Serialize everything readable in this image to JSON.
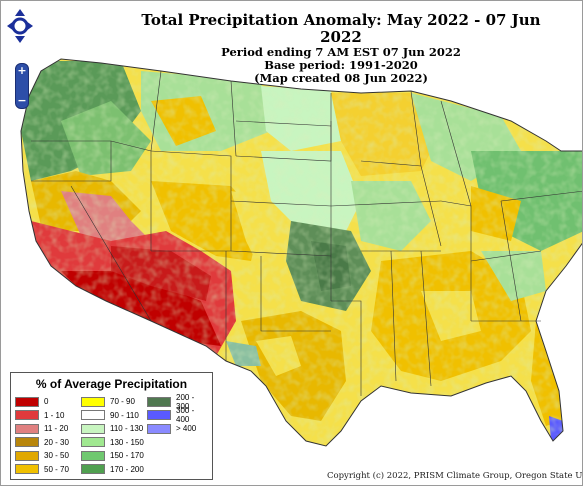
{
  "title": {
    "line1": "Total Precipitation Anomaly: May 2022 - 07 Jun 2022",
    "line2": "Period ending 7 AM EST 07 Jun 2022",
    "line3": "Base period: 1991-2020",
    "line4": "(Map created 08 Jun 2022)"
  },
  "navigation": {
    "pan_icon": "pan-arrows-icon",
    "zoom_in_label": "+",
    "zoom_out_label": "−"
  },
  "legend": {
    "title": "% of Average Precipitation",
    "items": [
      {
        "label": "0",
        "color": "#c00000"
      },
      {
        "label": "1 - 10",
        "color": "#e03a3c"
      },
      {
        "label": "11 - 20",
        "color": "#e08080"
      },
      {
        "label": "20 - 30",
        "color": "#b8860b"
      },
      {
        "label": "30 - 50",
        "color": "#e0a800"
      },
      {
        "label": "50 - 70",
        "color": "#f0c000"
      },
      {
        "label": "70 - 90",
        "color": "#ffff00"
      },
      {
        "label": "90 - 110",
        "color": "#ffffff"
      },
      {
        "label": "110 - 130",
        "color": "#c8f5c0"
      },
      {
        "label": "130 - 150",
        "color": "#a0e890"
      },
      {
        "label": "150 - 170",
        "color": "#70c870"
      },
      {
        "label": "170 - 200",
        "color": "#50a050"
      },
      {
        "label": "200 - 300",
        "color": "#507850"
      },
      {
        "label": "300 - 400",
        "color": "#5a5aff"
      },
      {
        "label": "> 400",
        "color": "#8a8aff"
      }
    ]
  },
  "copyright": "Copyright (c) 2022, PRISM Climate Group, Oregon State U"
}
